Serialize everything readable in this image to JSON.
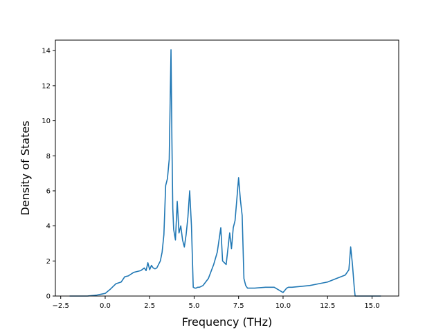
{
  "chart_data": {
    "type": "line",
    "title": "",
    "xlabel": "Frequency (THz)",
    "ylabel": "Density of States",
    "xlim": [
      -2.8,
      16.5
    ],
    "ylim": [
      0,
      14.6
    ],
    "xticks": [
      -2.5,
      0.0,
      2.5,
      5.0,
      7.5,
      10.0,
      12.5,
      15.0
    ],
    "xtick_labels": [
      "−2.5",
      "0.0",
      "2.5",
      "5.0",
      "7.5",
      "10.0",
      "12.5",
      "15.0"
    ],
    "yticks": [
      0,
      2,
      4,
      6,
      8,
      10,
      12,
      14
    ],
    "ytick_labels": [
      "0",
      "2",
      "4",
      "6",
      "8",
      "10",
      "12",
      "14"
    ],
    "grid": false,
    "legend": null,
    "colors": {
      "line": "#1f77b4",
      "axes": "#000000",
      "background": "#ffffff"
    },
    "series": [
      {
        "x": [
          -2.0,
          -1.0,
          -0.5,
          0.0,
          0.3,
          0.6,
          0.9,
          1.1,
          1.3,
          1.6,
          1.8,
          2.0,
          2.2,
          2.3,
          2.4,
          2.5,
          2.6,
          2.7,
          2.8,
          2.9,
          3.1,
          3.2,
          3.3,
          3.4,
          3.5,
          3.6,
          3.7,
          3.75,
          3.8,
          3.85,
          3.95,
          4.05,
          4.15,
          4.25,
          4.35,
          4.45,
          4.55,
          4.65,
          4.75,
          4.85,
          4.95,
          5.05,
          5.1,
          5.2,
          5.3,
          5.5,
          5.8,
          6.1,
          6.3,
          6.5,
          6.6,
          6.8,
          7.0,
          7.1,
          7.2,
          7.3,
          7.4,
          7.5,
          7.6,
          7.7,
          7.8,
          7.9,
          8.0,
          8.1,
          8.2,
          8.4,
          9.0,
          9.5,
          10.0,
          10.2,
          10.3,
          10.5,
          11.0,
          11.5,
          12.0,
          12.5,
          13.0,
          13.5,
          13.7,
          13.8,
          13.9,
          14.0,
          14.05,
          14.1,
          14.15,
          14.3,
          15.0,
          15.5
        ],
        "y": [
          0.0,
          0.0,
          0.05,
          0.15,
          0.4,
          0.7,
          0.8,
          1.1,
          1.15,
          1.35,
          1.4,
          1.45,
          1.6,
          1.45,
          1.9,
          1.5,
          1.75,
          1.6,
          1.55,
          1.6,
          2.0,
          2.5,
          3.5,
          6.3,
          6.7,
          7.8,
          14.05,
          9.0,
          5.0,
          3.8,
          3.2,
          5.4,
          3.6,
          4.0,
          3.2,
          2.8,
          3.5,
          4.5,
          6.0,
          4.0,
          0.5,
          0.45,
          0.45,
          0.5,
          0.5,
          0.6,
          1.0,
          1.8,
          2.5,
          3.9,
          2.0,
          1.8,
          3.6,
          2.7,
          3.9,
          4.3,
          5.5,
          6.75,
          5.5,
          4.6,
          1.0,
          0.6,
          0.45,
          0.45,
          0.45,
          0.45,
          0.5,
          0.5,
          0.2,
          0.45,
          0.5,
          0.5,
          0.55,
          0.6,
          0.7,
          0.8,
          1.0,
          1.2,
          1.5,
          2.8,
          1.8,
          0.5,
          0.0,
          0.0,
          0.0,
          0.0,
          0.0,
          0.0
        ]
      }
    ]
  }
}
